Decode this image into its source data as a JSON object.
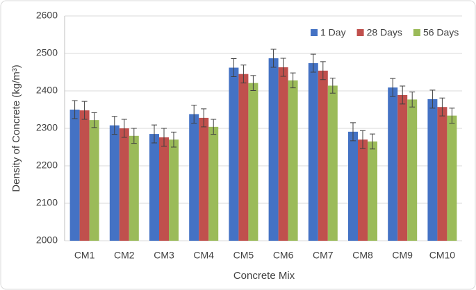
{
  "chart_data": {
    "type": "bar",
    "x_label": "Concrete Mix",
    "y_label": "Density of Concrete (kg/m³)",
    "categories": [
      "CM1",
      "CM2",
      "CM3",
      "CM4",
      "CM5",
      "CM6",
      "CM7",
      "CM8",
      "CM9",
      "CM10"
    ],
    "series": [
      {
        "name": "1 Day",
        "color": "#4472c4",
        "values": [
          2350,
          2308,
          2285,
          2338,
          2462,
          2487,
          2474,
          2291,
          2409,
          2378
        ],
        "errors": [
          24,
          24,
          24,
          24,
          24,
          24,
          24,
          24,
          24,
          24
        ]
      },
      {
        "name": "28 Days",
        "color": "#c0504d",
        "values": [
          2348,
          2300,
          2276,
          2328,
          2445,
          2463,
          2454,
          2270,
          2389,
          2357
        ],
        "errors": [
          24,
          24,
          24,
          24,
          24,
          24,
          24,
          24,
          24,
          24
        ]
      },
      {
        "name": "56 Days",
        "color": "#9bbb59",
        "values": [
          2322,
          2280,
          2270,
          2304,
          2421,
          2428,
          2414,
          2265,
          2377,
          2334
        ],
        "errors": [
          20,
          20,
          20,
          20,
          20,
          20,
          20,
          20,
          20,
          20
        ]
      }
    ],
    "ylim": [
      2000,
      2600
    ],
    "yticks": [
      2000,
      2100,
      2200,
      2300,
      2400,
      2500,
      2600
    ],
    "grid": true,
    "legend": "top-right"
  }
}
